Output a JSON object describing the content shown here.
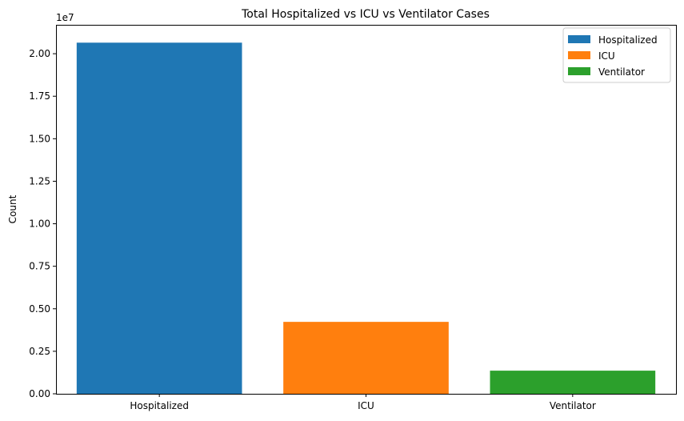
{
  "chart_data": {
    "type": "bar",
    "title": "Total Hospitalized vs ICU vs Ventilator Cases",
    "xlabel": "",
    "ylabel": "Count",
    "y_offset_label": "1e7",
    "categories": [
      "Hospitalized",
      "ICU",
      "Ventilator"
    ],
    "values": [
      20650000,
      4230000,
      1360000
    ],
    "ylim": [
      0,
      21700000
    ],
    "yticks": [
      0,
      2500000,
      5000000,
      7500000,
      10000000,
      12500000,
      15000000,
      17500000,
      20000000
    ],
    "ytick_labels": [
      "0.00",
      "0.25",
      "0.50",
      "0.75",
      "1.00",
      "1.25",
      "1.50",
      "1.75",
      "2.00"
    ],
    "colors": [
      "#1f77b4",
      "#ff7f0e",
      "#2ca02c"
    ],
    "legend": {
      "placement": "top-right",
      "entries": [
        "Hospitalized",
        "ICU",
        "Ventilator"
      ]
    },
    "grid": false
  }
}
